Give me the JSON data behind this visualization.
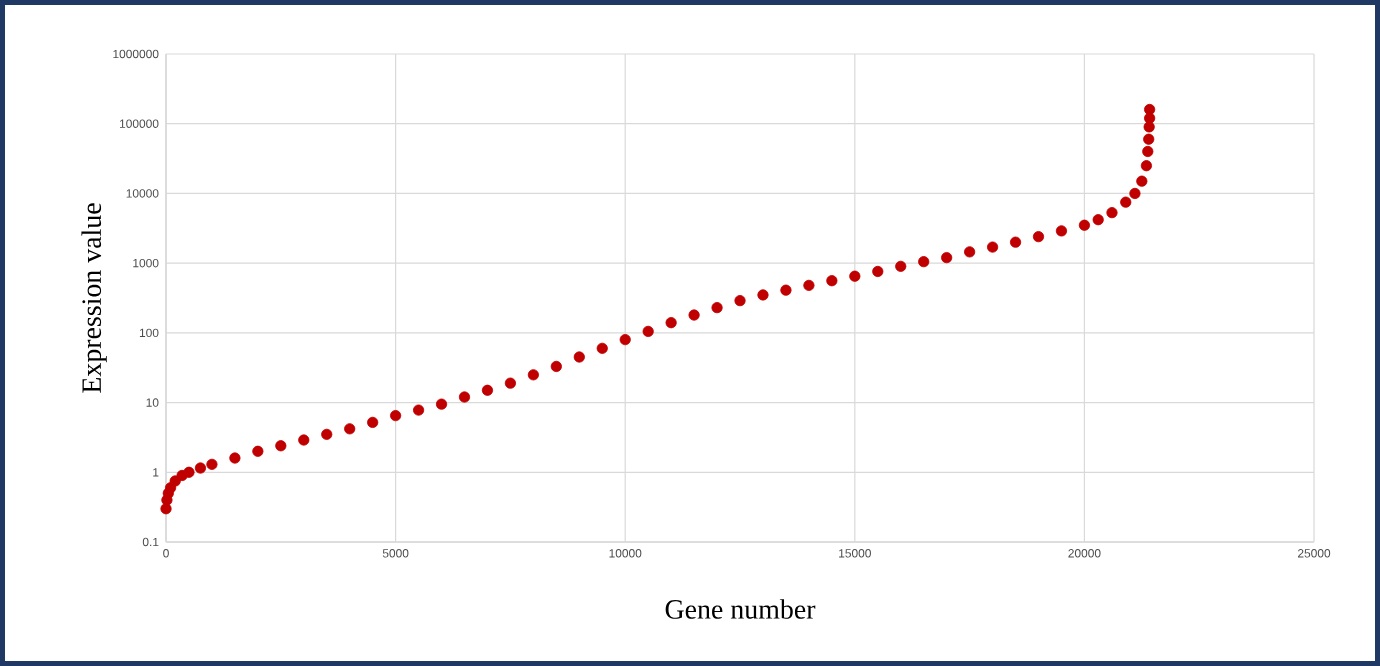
{
  "chart_data": {
    "type": "scatter",
    "xlabel": "Gene number",
    "ylabel": "Expression value",
    "log": "y",
    "grid": true,
    "marker": "circle",
    "xlim": [
      0,
      25000
    ],
    "ylim": [
      0.1,
      1000000
    ],
    "xticks": [
      0,
      5000,
      10000,
      15000,
      20000,
      25000
    ],
    "yticks": [
      0.1,
      1,
      10,
      100,
      1000,
      10000,
      100000,
      1000000
    ],
    "series": [
      {
        "color": "#c00000",
        "x": [
          0,
          20,
          50,
          100,
          200,
          350,
          500,
          750,
          1000,
          1500,
          2000,
          2500,
          3000,
          3500,
          4000,
          4500,
          5000,
          5500,
          6000,
          6500,
          7000,
          7500,
          8000,
          8500,
          9000,
          9500,
          10000,
          10500,
          11000,
          11500,
          12000,
          12500,
          13000,
          13500,
          14000,
          14500,
          15000,
          15500,
          16000,
          16500,
          17000,
          17500,
          18000,
          18500,
          19000,
          19500,
          20000,
          20300,
          20600,
          20900,
          21100,
          21250,
          21350,
          21380,
          21400,
          21410,
          21420,
          21420
        ],
        "values": [
          0.3,
          0.4,
          0.5,
          0.6,
          0.75,
          0.9,
          1.0,
          1.15,
          1.3,
          1.6,
          2,
          2.4,
          2.9,
          3.5,
          4.2,
          5.2,
          6.5,
          7.8,
          9.5,
          12,
          15,
          19,
          25,
          33,
          45,
          60,
          80,
          105,
          140,
          180,
          230,
          290,
          350,
          410,
          480,
          560,
          650,
          760,
          900,
          1050,
          1200,
          1450,
          1700,
          2000,
          2400,
          2900,
          3500,
          4200,
          5300,
          7500,
          10000,
          15000,
          25000,
          40000,
          60000,
          90000,
          120000,
          160000
        ]
      }
    ]
  }
}
